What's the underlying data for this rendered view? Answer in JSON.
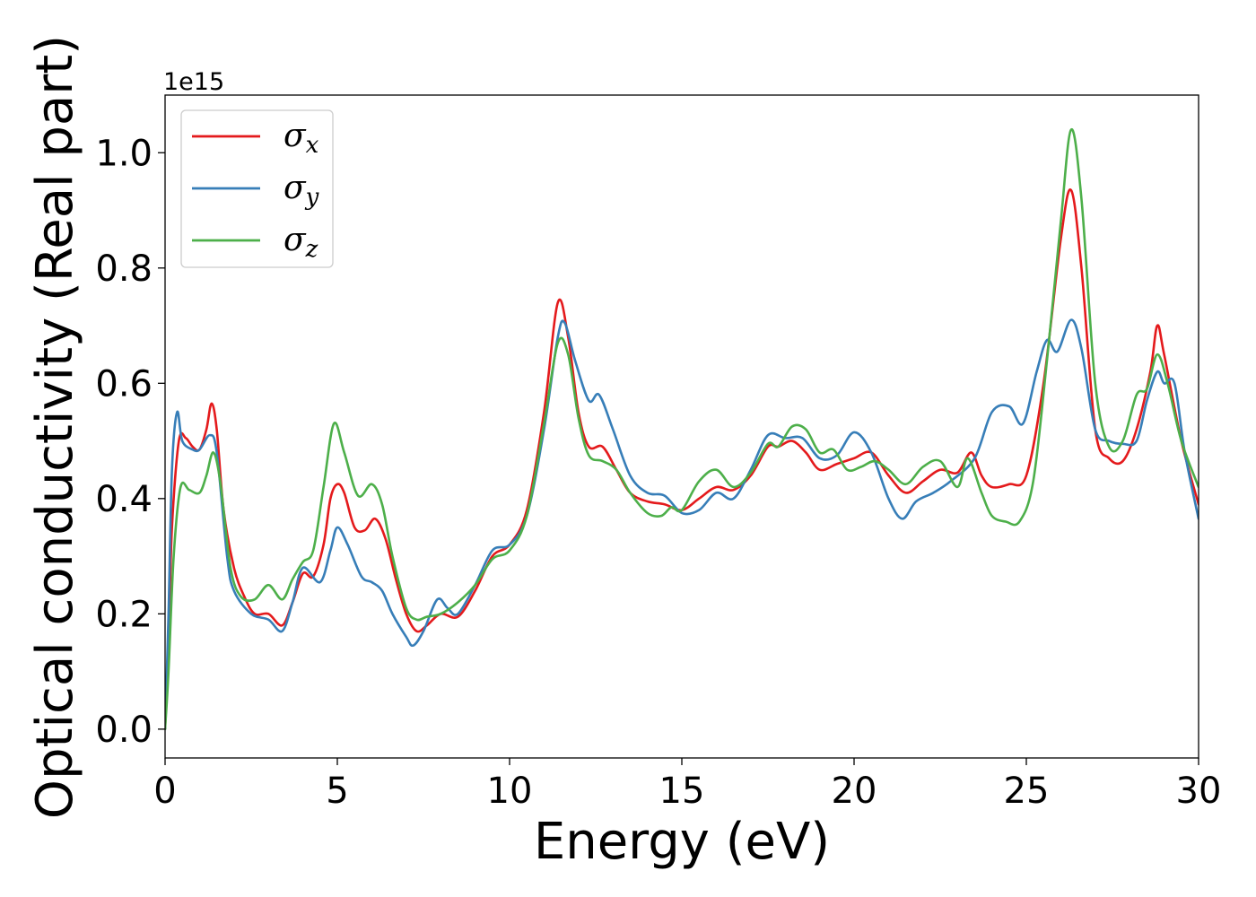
{
  "chart_data": {
    "type": "line",
    "title": "",
    "xlabel": "Energy (eV)",
    "ylabel": "Optical conductivity (Real part)",
    "y_offset_label": "1e15",
    "xlim": [
      0,
      30
    ],
    "ylim": [
      -0.05,
      1.1
    ],
    "x_ticks": [
      0,
      5,
      10,
      15,
      20,
      25,
      30
    ],
    "x_tick_labels": [
      "0",
      "5",
      "10",
      "15",
      "20",
      "25",
      "30"
    ],
    "y_ticks": [
      0.0,
      0.2,
      0.4,
      0.6,
      0.8,
      1.0
    ],
    "y_tick_labels": [
      "0.0",
      "0.2",
      "0.4",
      "0.6",
      "0.8",
      "1.0"
    ],
    "grid": false,
    "legend_position": "top-left",
    "series": [
      {
        "name": "σx",
        "legend_symbol": "σ",
        "legend_subscript": "x",
        "color": "#e41a1c",
        "points": [
          [
            0,
            0.0
          ],
          [
            0.1,
            0.15
          ],
          [
            0.2,
            0.35
          ],
          [
            0.4,
            0.5
          ],
          [
            0.6,
            0.505
          ],
          [
            0.8,
            0.49
          ],
          [
            1.0,
            0.485
          ],
          [
            1.2,
            0.52
          ],
          [
            1.35,
            0.565
          ],
          [
            1.5,
            0.52
          ],
          [
            1.7,
            0.38
          ],
          [
            2.0,
            0.28
          ],
          [
            2.3,
            0.23
          ],
          [
            2.6,
            0.2
          ],
          [
            3.0,
            0.2
          ],
          [
            3.4,
            0.18
          ],
          [
            3.7,
            0.22
          ],
          [
            4.0,
            0.27
          ],
          [
            4.3,
            0.265
          ],
          [
            4.6,
            0.32
          ],
          [
            4.8,
            0.4
          ],
          [
            5.0,
            0.425
          ],
          [
            5.2,
            0.41
          ],
          [
            5.5,
            0.35
          ],
          [
            5.8,
            0.345
          ],
          [
            6.1,
            0.365
          ],
          [
            6.4,
            0.33
          ],
          [
            6.7,
            0.26
          ],
          [
            7.0,
            0.2
          ],
          [
            7.3,
            0.17
          ],
          [
            7.6,
            0.18
          ],
          [
            8.0,
            0.2
          ],
          [
            8.5,
            0.195
          ],
          [
            9.0,
            0.24
          ],
          [
            9.5,
            0.3
          ],
          [
            10.0,
            0.32
          ],
          [
            10.5,
            0.38
          ],
          [
            11.0,
            0.55
          ],
          [
            11.4,
            0.74
          ],
          [
            11.7,
            0.68
          ],
          [
            12.0,
            0.55
          ],
          [
            12.3,
            0.49
          ],
          [
            12.7,
            0.49
          ],
          [
            13.1,
            0.45
          ],
          [
            13.5,
            0.41
          ],
          [
            14.0,
            0.395
          ],
          [
            14.5,
            0.39
          ],
          [
            15.0,
            0.38
          ],
          [
            15.5,
            0.4
          ],
          [
            16.0,
            0.42
          ],
          [
            16.5,
            0.415
          ],
          [
            17.0,
            0.44
          ],
          [
            17.5,
            0.49
          ],
          [
            17.8,
            0.49
          ],
          [
            18.2,
            0.5
          ],
          [
            18.6,
            0.48
          ],
          [
            19.0,
            0.45
          ],
          [
            19.5,
            0.46
          ],
          [
            20.0,
            0.47
          ],
          [
            20.5,
            0.48
          ],
          [
            21.0,
            0.44
          ],
          [
            21.5,
            0.41
          ],
          [
            22.0,
            0.43
          ],
          [
            22.5,
            0.45
          ],
          [
            23.0,
            0.445
          ],
          [
            23.4,
            0.48
          ],
          [
            23.7,
            0.44
          ],
          [
            24.0,
            0.42
          ],
          [
            24.5,
            0.425
          ],
          [
            25.0,
            0.44
          ],
          [
            25.5,
            0.6
          ],
          [
            26.0,
            0.85
          ],
          [
            26.3,
            0.935
          ],
          [
            26.6,
            0.8
          ],
          [
            27.0,
            0.52
          ],
          [
            27.4,
            0.47
          ],
          [
            27.8,
            0.465
          ],
          [
            28.2,
            0.52
          ],
          [
            28.6,
            0.62
          ],
          [
            28.8,
            0.7
          ],
          [
            29.0,
            0.65
          ],
          [
            29.5,
            0.5
          ],
          [
            30.0,
            0.39
          ]
        ]
      },
      {
        "name": "σy",
        "legend_symbol": "σ",
        "legend_subscript": "y",
        "color": "#377eb8",
        "points": [
          [
            0,
            0.0
          ],
          [
            0.1,
            0.2
          ],
          [
            0.2,
            0.45
          ],
          [
            0.35,
            0.55
          ],
          [
            0.5,
            0.5
          ],
          [
            0.8,
            0.485
          ],
          [
            1.0,
            0.485
          ],
          [
            1.3,
            0.51
          ],
          [
            1.5,
            0.48
          ],
          [
            1.8,
            0.3
          ],
          [
            2.0,
            0.24
          ],
          [
            2.5,
            0.2
          ],
          [
            3.0,
            0.19
          ],
          [
            3.4,
            0.17
          ],
          [
            3.7,
            0.22
          ],
          [
            4.0,
            0.28
          ],
          [
            4.5,
            0.255
          ],
          [
            4.8,
            0.31
          ],
          [
            5.0,
            0.35
          ],
          [
            5.3,
            0.32
          ],
          [
            5.7,
            0.265
          ],
          [
            6.0,
            0.255
          ],
          [
            6.3,
            0.24
          ],
          [
            6.6,
            0.2
          ],
          [
            7.0,
            0.16
          ],
          [
            7.2,
            0.145
          ],
          [
            7.5,
            0.17
          ],
          [
            7.9,
            0.225
          ],
          [
            8.2,
            0.21
          ],
          [
            8.5,
            0.2
          ],
          [
            9.0,
            0.25
          ],
          [
            9.5,
            0.31
          ],
          [
            10.0,
            0.32
          ],
          [
            10.5,
            0.37
          ],
          [
            11.0,
            0.52
          ],
          [
            11.4,
            0.68
          ],
          [
            11.6,
            0.705
          ],
          [
            11.9,
            0.64
          ],
          [
            12.3,
            0.57
          ],
          [
            12.6,
            0.58
          ],
          [
            13.0,
            0.52
          ],
          [
            13.5,
            0.44
          ],
          [
            14.0,
            0.41
          ],
          [
            14.5,
            0.405
          ],
          [
            15.0,
            0.375
          ],
          [
            15.5,
            0.38
          ],
          [
            16.0,
            0.41
          ],
          [
            16.5,
            0.4
          ],
          [
            17.0,
            0.45
          ],
          [
            17.5,
            0.51
          ],
          [
            18.0,
            0.505
          ],
          [
            18.5,
            0.505
          ],
          [
            19.0,
            0.47
          ],
          [
            19.5,
            0.475
          ],
          [
            20.0,
            0.515
          ],
          [
            20.5,
            0.48
          ],
          [
            21.0,
            0.4
          ],
          [
            21.4,
            0.365
          ],
          [
            21.8,
            0.395
          ],
          [
            22.3,
            0.41
          ],
          [
            22.8,
            0.43
          ],
          [
            23.5,
            0.47
          ],
          [
            24.0,
            0.55
          ],
          [
            24.5,
            0.56
          ],
          [
            24.9,
            0.53
          ],
          [
            25.3,
            0.62
          ],
          [
            25.6,
            0.675
          ],
          [
            25.9,
            0.655
          ],
          [
            26.3,
            0.71
          ],
          [
            26.6,
            0.66
          ],
          [
            27.0,
            0.52
          ],
          [
            27.4,
            0.5
          ],
          [
            27.8,
            0.495
          ],
          [
            28.2,
            0.5
          ],
          [
            28.5,
            0.57
          ],
          [
            28.8,
            0.62
          ],
          [
            29.0,
            0.6
          ],
          [
            29.3,
            0.6
          ],
          [
            29.6,
            0.48
          ],
          [
            30.0,
            0.365
          ]
        ]
      },
      {
        "name": "σz",
        "legend_symbol": "σ",
        "legend_subscript": "z",
        "color": "#4daf4a",
        "points": [
          [
            0,
            0.0
          ],
          [
            0.1,
            0.1
          ],
          [
            0.25,
            0.3
          ],
          [
            0.45,
            0.42
          ],
          [
            0.7,
            0.415
          ],
          [
            1.0,
            0.41
          ],
          [
            1.2,
            0.44
          ],
          [
            1.4,
            0.48
          ],
          [
            1.6,
            0.43
          ],
          [
            1.9,
            0.28
          ],
          [
            2.2,
            0.23
          ],
          [
            2.6,
            0.225
          ],
          [
            3.0,
            0.25
          ],
          [
            3.4,
            0.225
          ],
          [
            3.7,
            0.26
          ],
          [
            4.0,
            0.29
          ],
          [
            4.3,
            0.31
          ],
          [
            4.6,
            0.42
          ],
          [
            4.9,
            0.53
          ],
          [
            5.2,
            0.48
          ],
          [
            5.6,
            0.405
          ],
          [
            6.0,
            0.425
          ],
          [
            6.3,
            0.39
          ],
          [
            6.6,
            0.3
          ],
          [
            7.0,
            0.21
          ],
          [
            7.3,
            0.19
          ],
          [
            7.6,
            0.195
          ],
          [
            8.0,
            0.2
          ],
          [
            8.5,
            0.22
          ],
          [
            9.0,
            0.25
          ],
          [
            9.5,
            0.295
          ],
          [
            10.0,
            0.31
          ],
          [
            10.5,
            0.37
          ],
          [
            11.0,
            0.53
          ],
          [
            11.4,
            0.67
          ],
          [
            11.7,
            0.65
          ],
          [
            12.0,
            0.54
          ],
          [
            12.3,
            0.475
          ],
          [
            12.7,
            0.465
          ],
          [
            13.1,
            0.45
          ],
          [
            13.5,
            0.41
          ],
          [
            14.0,
            0.375
          ],
          [
            14.4,
            0.37
          ],
          [
            14.7,
            0.385
          ],
          [
            15.0,
            0.38
          ],
          [
            15.5,
            0.43
          ],
          [
            16.0,
            0.45
          ],
          [
            16.5,
            0.42
          ],
          [
            17.0,
            0.445
          ],
          [
            17.5,
            0.495
          ],
          [
            17.8,
            0.49
          ],
          [
            18.2,
            0.525
          ],
          [
            18.6,
            0.52
          ],
          [
            19.0,
            0.48
          ],
          [
            19.4,
            0.485
          ],
          [
            19.8,
            0.45
          ],
          [
            20.2,
            0.455
          ],
          [
            20.6,
            0.465
          ],
          [
            21.0,
            0.45
          ],
          [
            21.5,
            0.425
          ],
          [
            22.0,
            0.455
          ],
          [
            22.5,
            0.465
          ],
          [
            23.0,
            0.42
          ],
          [
            23.3,
            0.47
          ],
          [
            23.7,
            0.41
          ],
          [
            24.0,
            0.37
          ],
          [
            24.4,
            0.36
          ],
          [
            24.8,
            0.36
          ],
          [
            25.2,
            0.43
          ],
          [
            25.6,
            0.64
          ],
          [
            26.0,
            0.88
          ],
          [
            26.3,
            1.04
          ],
          [
            26.6,
            0.92
          ],
          [
            27.0,
            0.6
          ],
          [
            27.4,
            0.49
          ],
          [
            27.8,
            0.5
          ],
          [
            28.2,
            0.58
          ],
          [
            28.5,
            0.59
          ],
          [
            28.8,
            0.65
          ],
          [
            29.1,
            0.6
          ],
          [
            29.5,
            0.5
          ],
          [
            30.0,
            0.42
          ]
        ]
      }
    ]
  }
}
